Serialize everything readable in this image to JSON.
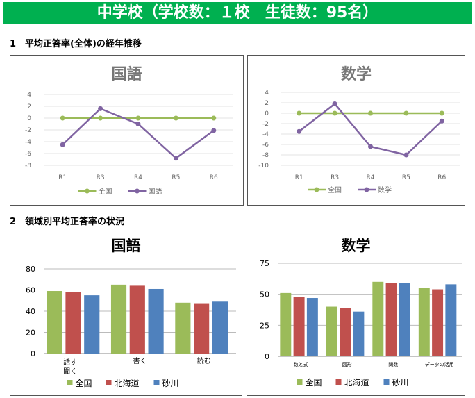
{
  "header": {
    "title": "中学校（学校数：１校　生徒数：95名）"
  },
  "section1": {
    "title": "1　平均正答率(全体)の経年推移"
  },
  "section2": {
    "title": "2　領域別平均正答率の状況"
  },
  "colors": {
    "zenkoku": "#9bbb59",
    "subject": "#8064a2",
    "hokkaido": "#c0504d",
    "sunagawa": "#4f81bd"
  },
  "chart_data": [
    {
      "type": "line",
      "title": "国語",
      "categories": [
        "R1",
        "R3",
        "R4",
        "R5",
        "R6"
      ],
      "ylim": [
        -8,
        4
      ],
      "yticks": [
        4,
        2,
        0,
        -2,
        -4,
        -6,
        -8
      ],
      "legend": "bottom",
      "series": [
        {
          "name": "全国",
          "values": [
            0,
            0,
            0,
            0,
            0
          ]
        },
        {
          "name": "国語",
          "values": [
            -4.5,
            1.6,
            -1.0,
            -6.8,
            -2.1
          ]
        }
      ]
    },
    {
      "type": "line",
      "title": "数学",
      "categories": [
        "R1",
        "R3",
        "R4",
        "R5",
        "R6"
      ],
      "ylim": [
        -10,
        4
      ],
      "yticks": [
        4,
        2,
        0,
        -2,
        -4,
        -6,
        -8,
        -10
      ],
      "legend": "bottom",
      "series": [
        {
          "name": "全国",
          "values": [
            0,
            0,
            0,
            0,
            0
          ]
        },
        {
          "name": "数学",
          "values": [
            -3.5,
            1.8,
            -6.4,
            -8.0,
            -1.5
          ]
        }
      ]
    },
    {
      "type": "bar",
      "title": "国語",
      "categories": [
        "話す聞く",
        "書く",
        "読む"
      ],
      "ylim": [
        0,
        80
      ],
      "yticks": [
        80,
        60,
        40,
        20,
        0
      ],
      "legend": "bottom",
      "series": [
        {
          "name": "全国",
          "values": [
            59,
            65,
            48
          ]
        },
        {
          "name": "北海道",
          "values": [
            58,
            64,
            47.5
          ]
        },
        {
          "name": "砂川",
          "values": [
            55,
            61,
            49
          ]
        }
      ]
    },
    {
      "type": "bar",
      "title": "数学",
      "categories": [
        "数と式",
        "図形",
        "関数",
        "データの活用"
      ],
      "ylim": [
        0,
        75
      ],
      "yticks": [
        75,
        50,
        25,
        0
      ],
      "legend": "bottom",
      "series": [
        {
          "name": "全国",
          "values": [
            51,
            40,
            60,
            55
          ]
        },
        {
          "name": "北海道",
          "values": [
            48,
            39,
            59,
            54
          ]
        },
        {
          "name": "砂川",
          "values": [
            47,
            36,
            59,
            58
          ]
        }
      ]
    }
  ]
}
